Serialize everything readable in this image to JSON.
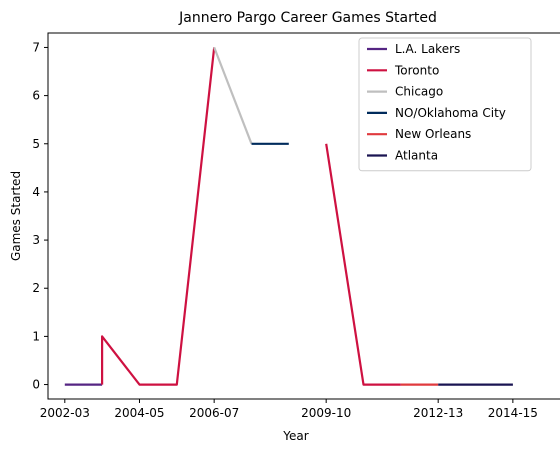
{
  "chart_data": {
    "type": "line",
    "title": "Jannero Pargo Career Games Started",
    "xlabel": "Year",
    "ylabel": "Games Started",
    "x_ticks": [
      "2002-03",
      "2004-05",
      "2006-07",
      "2009-10",
      "2012-13",
      "2014-15"
    ],
    "y_ticks": [
      0,
      1,
      2,
      3,
      4,
      5,
      6,
      7
    ],
    "ylim": [
      -0.3,
      7.3
    ],
    "grid": false,
    "legend_position": "top-right",
    "series": [
      {
        "name": "L.A. Lakers",
        "color": "#552583",
        "points": [
          [
            "2002-03",
            0
          ],
          [
            "2003-04",
            0
          ]
        ]
      },
      {
        "name": "Toronto",
        "color": "#CE1141",
        "points": [
          [
            "2003-04",
            0
          ],
          [
            "2003-04",
            1
          ],
          [
            "2004-05",
            0
          ],
          [
            "2005-06",
            0
          ],
          [
            "2006-07",
            7
          ],
          [
            "2006-07",
            7
          ]
        ]
      },
      {
        "name": "Chicago",
        "color": "#BFBFBF",
        "points": [
          [
            "2006-07",
            7
          ],
          [
            "2007-08",
            5
          ]
        ]
      },
      {
        "name": "NO/Oklahoma City",
        "color": "#002B5C",
        "points": [
          [
            "2007-08",
            5
          ],
          [
            "2008-09",
            5
          ]
        ]
      },
      {
        "name": "New Orleans",
        "color": "#E03A3E",
        "points": [
          [
            "2011-12",
            0
          ],
          [
            "2012-13",
            0
          ]
        ]
      },
      {
        "name": "Atlanta",
        "color": "#1A1452",
        "points": [
          [
            "2012-13",
            0
          ],
          [
            "2014-15",
            0
          ]
        ]
      }
    ],
    "extra_toronto_segment": [
      [
        "2009-10",
        5
      ],
      [
        "2010-11",
        0
      ],
      [
        "2011-12",
        0
      ]
    ]
  }
}
